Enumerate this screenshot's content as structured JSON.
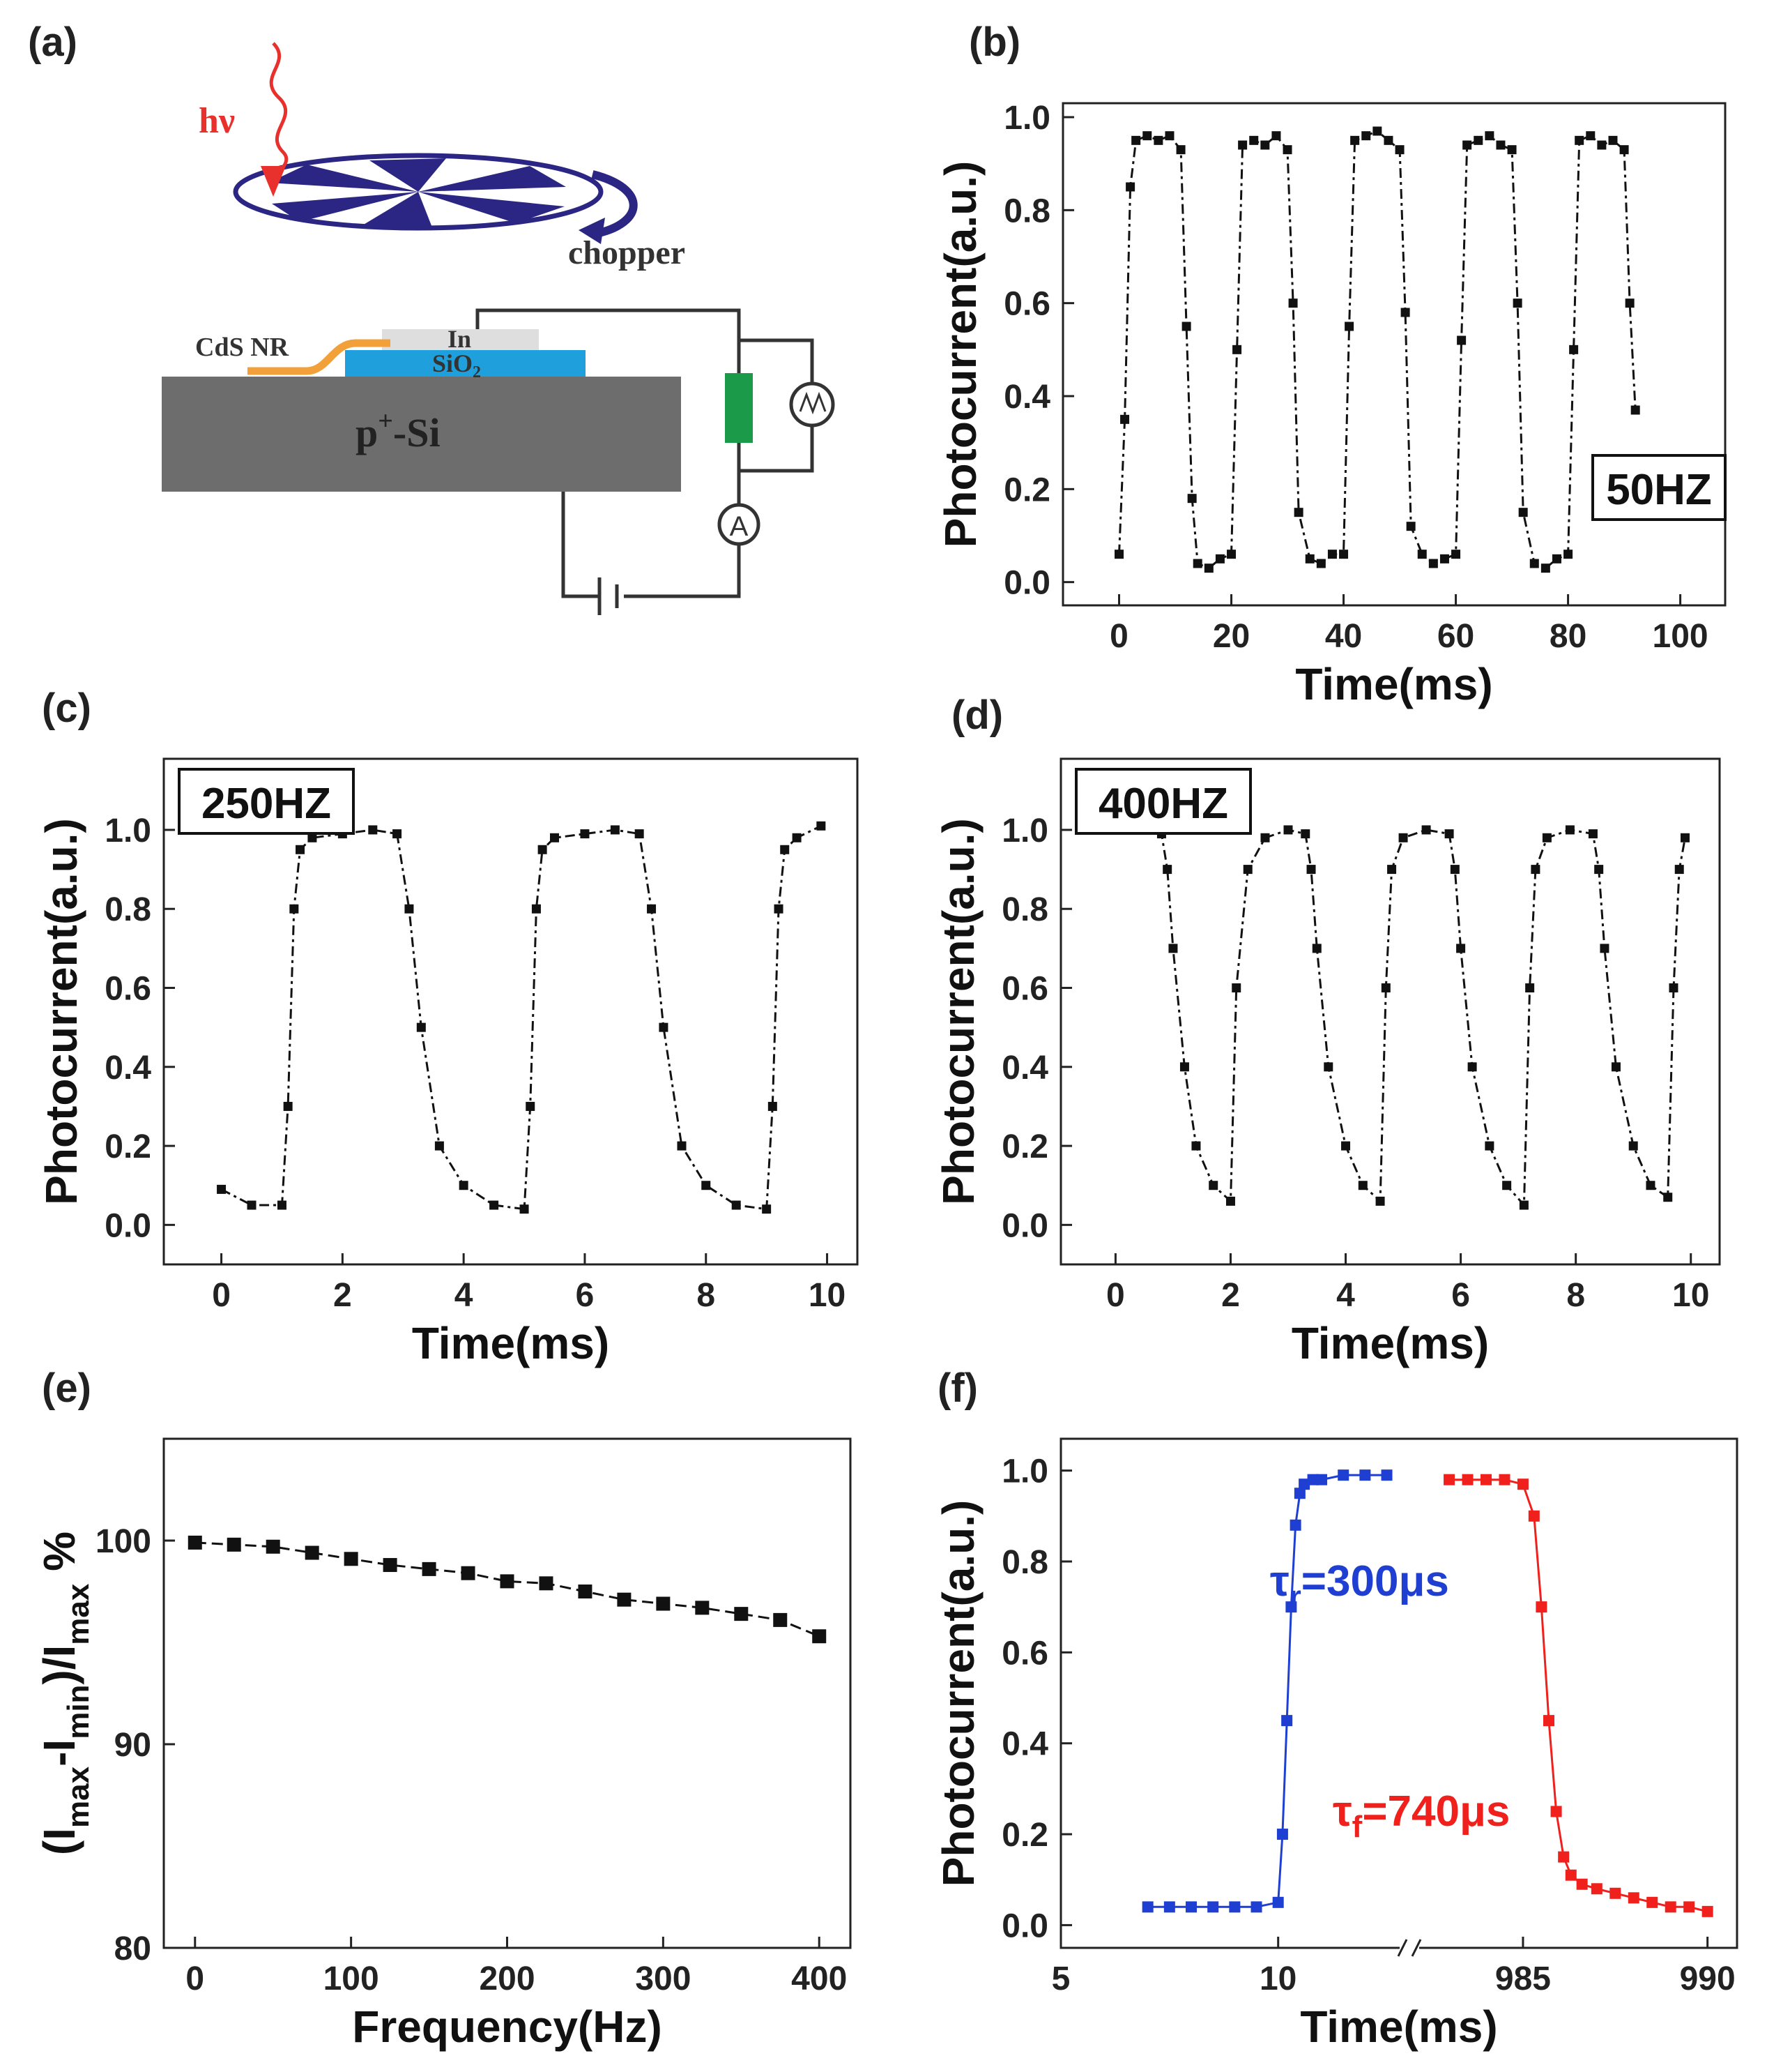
{
  "panel_labels": {
    "a": "(a)",
    "b": "(b)",
    "c": "(c)",
    "d": "(d)",
    "e": "(e)",
    "f": "(f)"
  },
  "schematic": {
    "light_label": "hν",
    "chopper_label": "chopper",
    "nanoribbon_label": "CdS NR",
    "electrode_label": "In",
    "oxide_label": "SiO",
    "oxide_subscript": "2",
    "substrate_label": "p",
    "substrate_superscript": "+",
    "substrate_suffix": "-Si",
    "ammeter_label": "A",
    "colors": {
      "chopper": "#2b2683",
      "light": "#e8302c",
      "nanoribbon": "#f2a13a",
      "oxide": "#1fa0dc",
      "electrode": "#dedede",
      "substrate": "#6d6d6d",
      "resistor": "#1b9a4a"
    }
  },
  "chart_data": [
    {
      "id": "b",
      "type": "scatter",
      "xlabel": "Time(ms)",
      "ylabel": "Photocurrent(a.u.)",
      "xlim": [
        -10,
        108
      ],
      "ylim": [
        -0.05,
        1.03
      ],
      "xticks": [
        0,
        20,
        40,
        60,
        80,
        100
      ],
      "yticks": [
        0.0,
        0.2,
        0.4,
        0.6,
        0.8,
        1.0
      ],
      "annotation": "50HZ",
      "color": "#111111",
      "series": [
        {
          "x": [
            0,
            1,
            2,
            3,
            5,
            7,
            9,
            11,
            12,
            13,
            14,
            16,
            18,
            20,
            21,
            22,
            24,
            26,
            28,
            30,
            31,
            32,
            34,
            36,
            38,
            40,
            41,
            42,
            44,
            46,
            48,
            50,
            51,
            52,
            54,
            56,
            58,
            60,
            61,
            62,
            64,
            66,
            68,
            70,
            71,
            72,
            74,
            76,
            78,
            80,
            81,
            82,
            84,
            86,
            88,
            90,
            91,
            92
          ],
          "y": [
            0.06,
            0.35,
            0.85,
            0.95,
            0.96,
            0.95,
            0.96,
            0.93,
            0.55,
            0.18,
            0.04,
            0.03,
            0.05,
            0.06,
            0.5,
            0.94,
            0.95,
            0.94,
            0.96,
            0.93,
            0.6,
            0.15,
            0.05,
            0.04,
            0.06,
            0.06,
            0.55,
            0.95,
            0.96,
            0.97,
            0.95,
            0.93,
            0.58,
            0.12,
            0.06,
            0.04,
            0.05,
            0.06,
            0.52,
            0.94,
            0.95,
            0.96,
            0.94,
            0.93,
            0.6,
            0.15,
            0.04,
            0.03,
            0.05,
            0.06,
            0.5,
            0.95,
            0.96,
            0.94,
            0.95,
            0.93,
            0.6,
            0.37
          ]
        }
      ]
    },
    {
      "id": "c",
      "type": "scatter",
      "xlabel": "Time(ms)",
      "ylabel": "Photocurrent(a.u.)",
      "xlim": [
        -0.95,
        10.5
      ],
      "ylim": [
        -0.1,
        1.18
      ],
      "xticks": [
        0,
        2,
        4,
        6,
        8,
        10
      ],
      "yticks": [
        0.0,
        0.2,
        0.4,
        0.6,
        0.8,
        1.0
      ],
      "annotation": "250HZ",
      "color": "#111111",
      "series": [
        {
          "x": [
            0,
            0.5,
            1.0,
            1.1,
            1.2,
            1.3,
            1.5,
            2.0,
            2.5,
            2.9,
            3.1,
            3.3,
            3.6,
            4.0,
            4.5,
            5.0,
            5.1,
            5.2,
            5.3,
            5.5,
            6.0,
            6.5,
            6.9,
            7.1,
            7.3,
            7.6,
            8.0,
            8.5,
            9.0,
            9.1,
            9.2,
            9.3,
            9.5,
            9.9
          ],
          "y": [
            0.09,
            0.05,
            0.05,
            0.3,
            0.8,
            0.95,
            0.98,
            0.99,
            1.0,
            0.99,
            0.8,
            0.5,
            0.2,
            0.1,
            0.05,
            0.04,
            0.3,
            0.8,
            0.95,
            0.98,
            0.99,
            1.0,
            0.99,
            0.8,
            0.5,
            0.2,
            0.1,
            0.05,
            0.04,
            0.3,
            0.8,
            0.95,
            0.98,
            1.01
          ]
        }
      ]
    },
    {
      "id": "d",
      "type": "scatter",
      "xlabel": "Time(ms)",
      "ylabel": "Photocurrent(a.u.)",
      "xlim": [
        -0.95,
        10.5
      ],
      "ylim": [
        -0.1,
        1.18
      ],
      "xticks": [
        0,
        2,
        4,
        6,
        8,
        10
      ],
      "yticks": [
        0.0,
        0.2,
        0.4,
        0.6,
        0.8,
        1.0
      ],
      "annotation": "400HZ",
      "color": "#111111",
      "series": [
        {
          "x": [
            0,
            0.4,
            0.8,
            0.9,
            1.0,
            1.2,
            1.4,
            1.7,
            2.0,
            2.1,
            2.3,
            2.6,
            3.0,
            3.3,
            3.4,
            3.5,
            3.7,
            4.0,
            4.3,
            4.6,
            4.7,
            4.8,
            5.0,
            5.4,
            5.8,
            5.9,
            6.0,
            6.2,
            6.5,
            6.8,
            7.1,
            7.2,
            7.3,
            7.5,
            7.9,
            8.3,
            8.4,
            8.5,
            8.7,
            9.0,
            9.3,
            9.6,
            9.7,
            9.8,
            9.9
          ],
          "y": [
            1.0,
            1.0,
            0.99,
            0.9,
            0.7,
            0.4,
            0.2,
            0.1,
            0.06,
            0.6,
            0.9,
            0.98,
            1.0,
            0.99,
            0.9,
            0.7,
            0.4,
            0.2,
            0.1,
            0.06,
            0.6,
            0.9,
            0.98,
            1.0,
            0.99,
            0.9,
            0.7,
            0.4,
            0.2,
            0.1,
            0.05,
            0.6,
            0.9,
            0.98,
            1.0,
            0.99,
            0.9,
            0.7,
            0.4,
            0.2,
            0.1,
            0.07,
            0.6,
            0.9,
            0.98
          ]
        }
      ]
    },
    {
      "id": "e",
      "type": "line",
      "xlabel": "Frequency(Hz)",
      "ylabel_parts": [
        "(I",
        "max",
        "-I",
        "min",
        ")/I",
        "max",
        " %"
      ],
      "xlim": [
        -20,
        420
      ],
      "ylim": [
        80,
        105
      ],
      "xticks": [
        0,
        100,
        200,
        300,
        400
      ],
      "yticks": [
        80,
        90,
        100
      ],
      "color": "#111111",
      "series": [
        {
          "x": [
            0,
            25,
            50,
            75,
            100,
            125,
            150,
            175,
            200,
            225,
            250,
            275,
            300,
            325,
            350,
            375,
            400
          ],
          "y": [
            99.9,
            99.8,
            99.7,
            99.4,
            99.1,
            98.8,
            98.6,
            98.4,
            98.0,
            97.9,
            97.5,
            97.1,
            96.9,
            96.7,
            96.4,
            96.1,
            95.3
          ]
        }
      ]
    },
    {
      "id": "f",
      "type": "line",
      "xlabel": "Time(ms)",
      "ylabel": "Photocurrent(a.u.)",
      "ylim": [
        -0.05,
        1.07
      ],
      "yticks": [
        0.0,
        0.2,
        0.4,
        0.6,
        0.8,
        1.0
      ],
      "broken_axis": true,
      "segments": [
        {
          "xlim": [
            5,
            12.7
          ],
          "xticks": [
            5,
            10
          ]
        },
        {
          "xlim": [
            982.3,
            990.8
          ],
          "xticks": [
            985,
            990
          ]
        }
      ],
      "series": [
        {
          "segment": 0,
          "color": "#1f3fd2",
          "x": [
            7,
            7.5,
            8,
            8.5,
            9,
            9.5,
            10,
            10.1,
            10.2,
            10.3,
            10.4,
            10.5,
            10.6,
            10.8,
            11.0,
            11.5,
            12,
            12.5
          ],
          "y": [
            0.04,
            0.04,
            0.04,
            0.04,
            0.04,
            0.04,
            0.05,
            0.2,
            0.45,
            0.7,
            0.88,
            0.95,
            0.97,
            0.98,
            0.98,
            0.99,
            0.99,
            0.99
          ]
        },
        {
          "segment": 1,
          "color": "#f0201c",
          "x": [
            983,
            983.5,
            984,
            984.5,
            985,
            985.3,
            985.5,
            985.7,
            985.9,
            986.1,
            986.3,
            986.6,
            987,
            987.5,
            988,
            988.5,
            989,
            989.5,
            990
          ],
          "y": [
            0.98,
            0.98,
            0.98,
            0.98,
            0.97,
            0.9,
            0.7,
            0.45,
            0.25,
            0.15,
            0.11,
            0.09,
            0.08,
            0.07,
            0.06,
            0.05,
            0.04,
            0.04,
            0.03
          ]
        }
      ],
      "annotations": [
        {
          "sym": "τ",
          "sub": "r",
          "text": "=300μs",
          "color": "#1f3fd2"
        },
        {
          "sym": "τ",
          "sub": "f",
          "text": "=740μs",
          "color": "#f0201c"
        }
      ]
    }
  ]
}
